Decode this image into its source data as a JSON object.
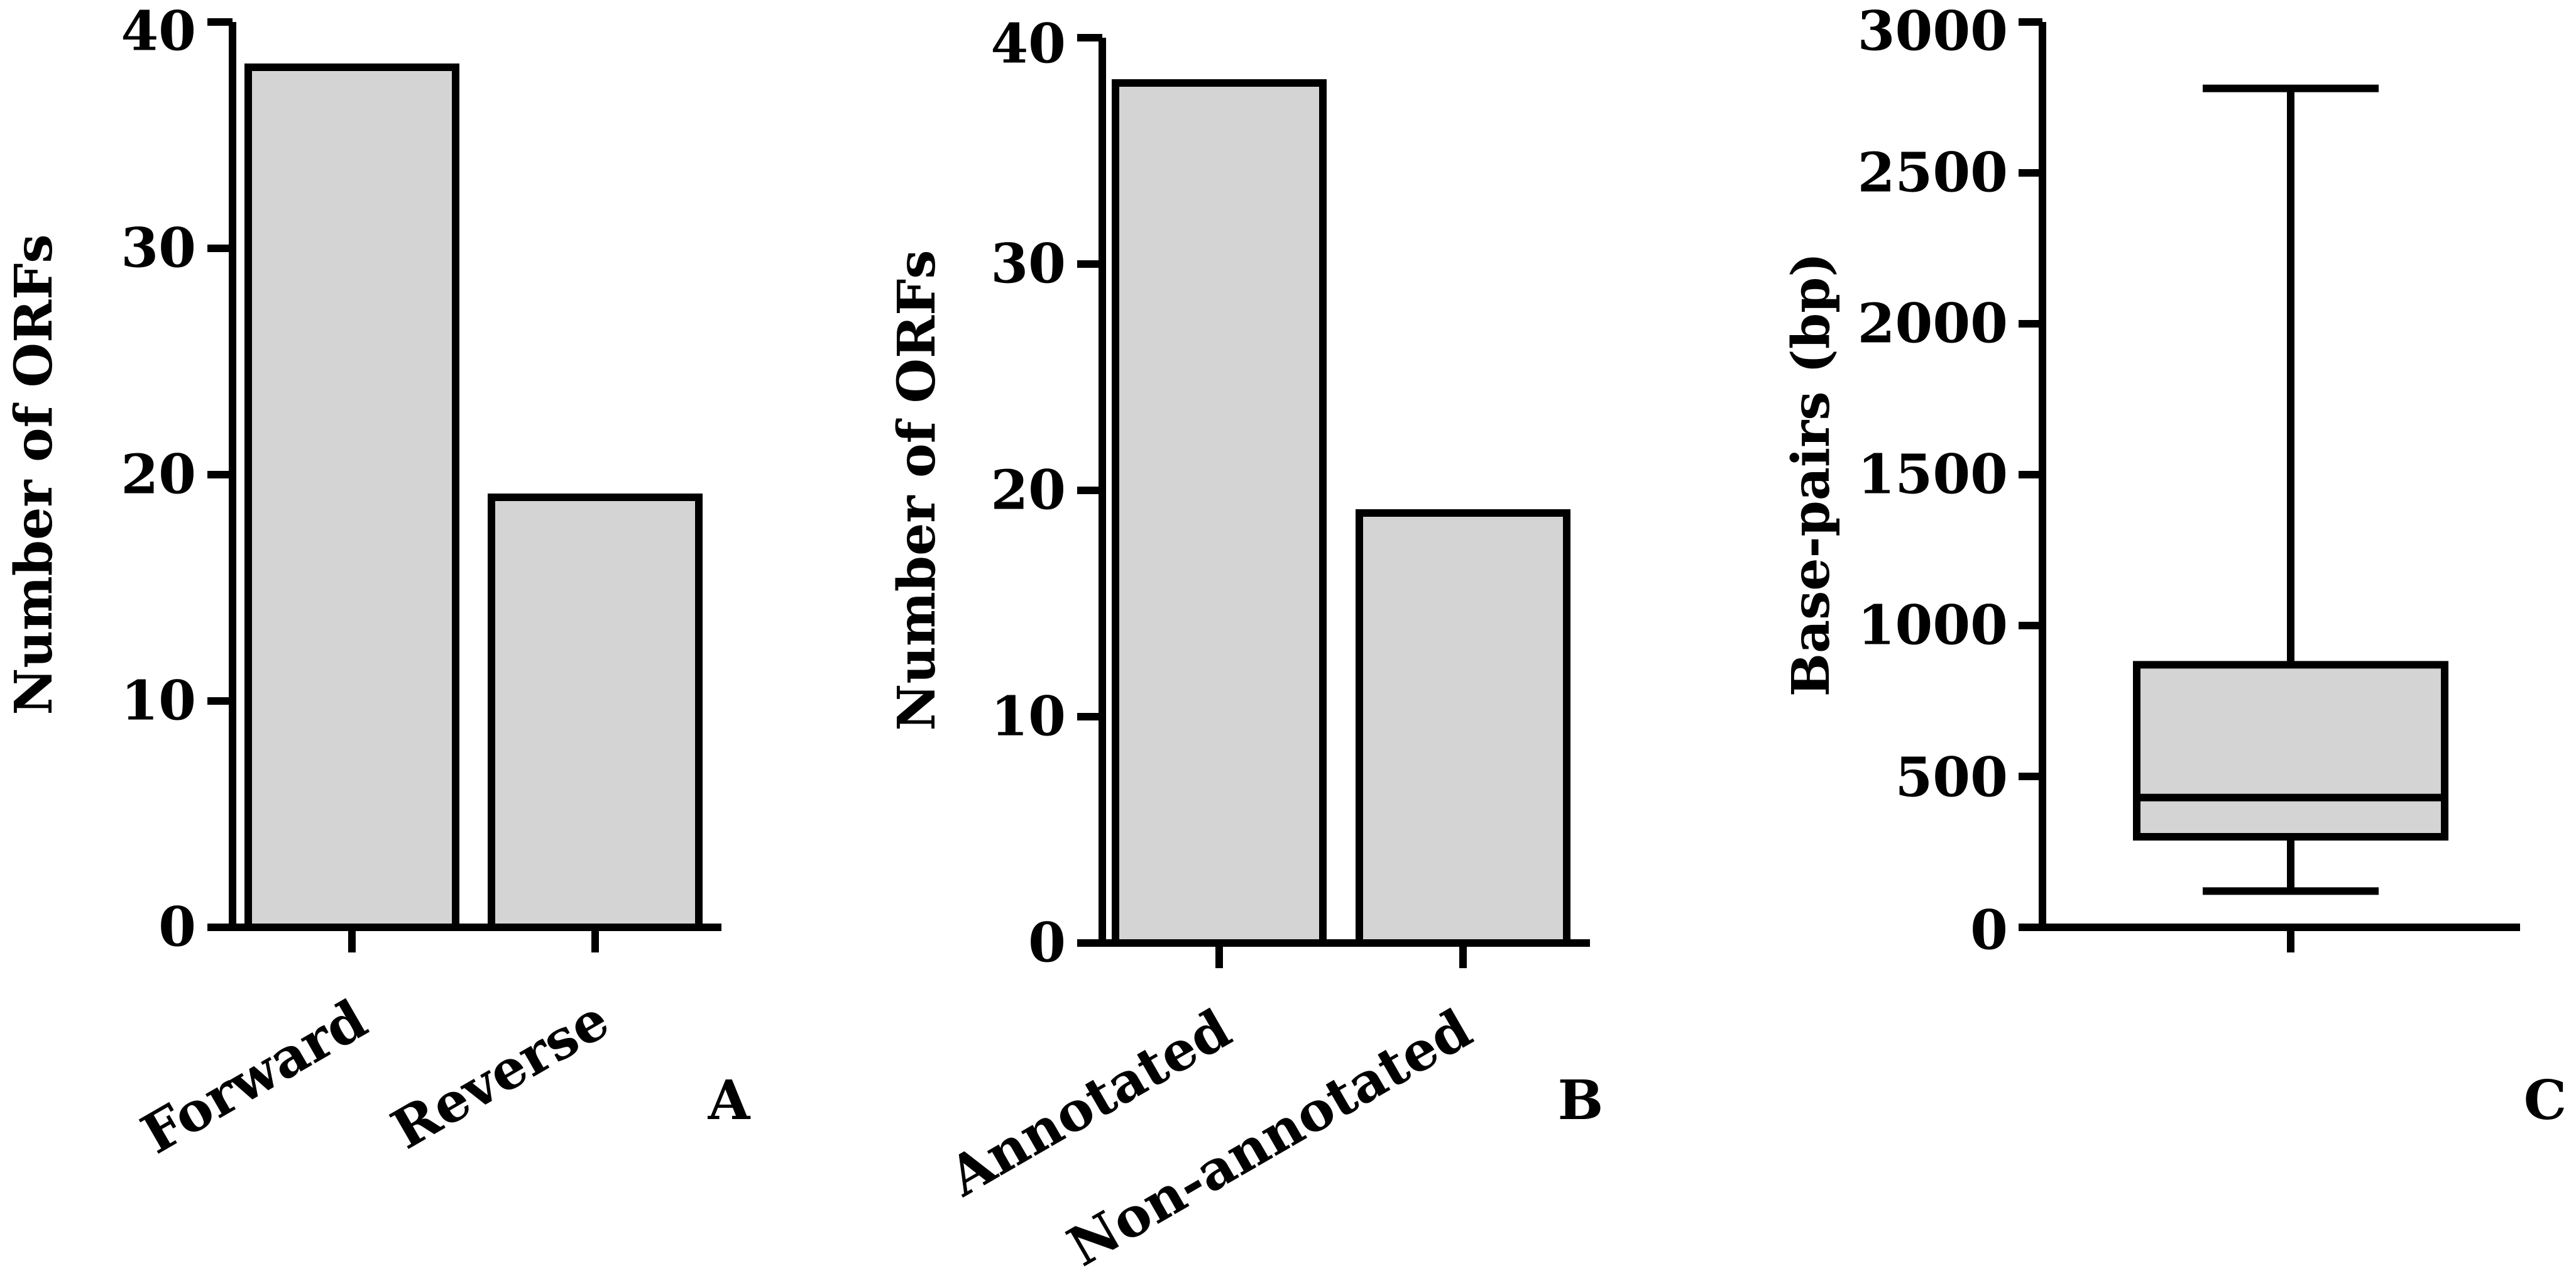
{
  "colors": {
    "bar_fill": "#d4d4d4",
    "bar_stroke": "#000000",
    "axis": "#000000"
  },
  "chart_data": [
    {
      "type": "bar",
      "panel": "A",
      "categories": [
        "Forward",
        "Reverse"
      ],
      "values": [
        38,
        19
      ],
      "ylabel": "Number of ORFs",
      "xlabel": "",
      "ylim": [
        0,
        40
      ],
      "yticks": [
        "0",
        "10",
        "20",
        "30",
        "40"
      ],
      "grid": false
    },
    {
      "type": "bar",
      "panel": "B",
      "categories": [
        "Annotated",
        "Non-annotated"
      ],
      "values": [
        38,
        19
      ],
      "ylabel": "Number of ORFs",
      "xlabel": "",
      "ylim": [
        0,
        40
      ],
      "yticks": [
        "0",
        "10",
        "20",
        "30",
        "40"
      ],
      "grid": false
    },
    {
      "type": "box",
      "panel": "C",
      "ylabel": "Base-pairs (bp)",
      "xlabel": "",
      "ylim": [
        0,
        3000
      ],
      "yticks": [
        "0",
        "500",
        "1000",
        "1500",
        "2000",
        "2500",
        "3000"
      ],
      "box": {
        "min": 120,
        "q1": 300,
        "median": 430,
        "q3": 870,
        "max": 2780
      },
      "grid": false
    }
  ]
}
